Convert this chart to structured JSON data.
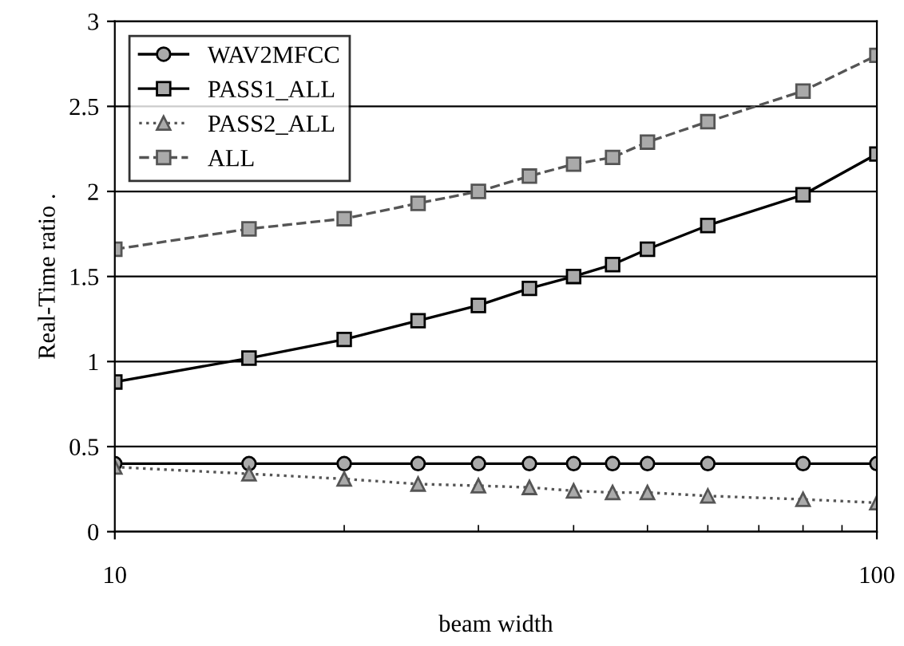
{
  "chart_data": {
    "type": "line",
    "xlabel": "beam width",
    "ylabel": "Real-Time ratio .",
    "x": [
      10,
      15,
      20,
      25,
      30,
      35,
      40,
      45,
      50,
      60,
      80,
      100
    ],
    "log": "x",
    "xlim": [
      10,
      100
    ],
    "xticks": [
      10,
      100
    ],
    "ylim": [
      0,
      3
    ],
    "yticks": [
      0,
      0.5,
      1,
      1.5,
      2,
      2.5,
      3
    ],
    "grid": "y",
    "legend": "top left",
    "series": [
      {
        "name": "WAV2MFCC",
        "color": "#000000",
        "marker": "circle",
        "line_style": "solid",
        "values": [
          0.4,
          0.4,
          0.4,
          0.4,
          0.4,
          0.4,
          0.4,
          0.4,
          0.4,
          0.4,
          0.4,
          0.4
        ]
      },
      {
        "name": "PASS1_ALL",
        "color": "#000000",
        "marker": "square",
        "line_style": "solid",
        "values": [
          0.88,
          1.02,
          1.13,
          1.24,
          1.33,
          1.43,
          1.5,
          1.57,
          1.66,
          1.8,
          1.98,
          2.22
        ]
      },
      {
        "name": "PASS2_ALL",
        "color": "#555555",
        "marker": "triangle",
        "line_style": "dotted",
        "values": [
          0.38,
          0.34,
          0.31,
          0.28,
          0.27,
          0.26,
          0.24,
          0.23,
          0.23,
          0.21,
          0.19,
          0.17
        ]
      },
      {
        "name": "ALL",
        "color": "#555555",
        "marker": "square",
        "line_style": "dashed",
        "values": [
          1.66,
          1.78,
          1.84,
          1.93,
          2.0,
          2.09,
          2.16,
          2.2,
          2.29,
          2.41,
          2.59,
          2.8
        ]
      }
    ]
  }
}
